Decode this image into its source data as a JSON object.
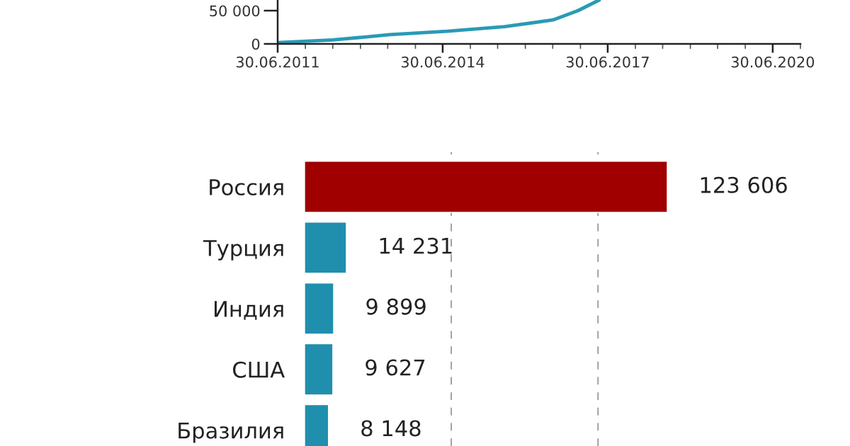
{
  "chart_data": [
    {
      "type": "line",
      "x": [
        "2011-06-30",
        "2012-06-30",
        "2013-01-15",
        "2013-07-15",
        "2014-07-30",
        "2015-08-15",
        "2016-07-01",
        "2016-12-15",
        "2017-05-05"
      ],
      "series": [
        {
          "color": "#2a9ab5",
          "values": [
            2000,
            6000,
            10000,
            14000,
            19000,
            26000,
            36000,
            50000,
            66000
          ]
        }
      ],
      "xlim": [
        "2011-06-30",
        "2020-12-31"
      ],
      "xticks": [
        {
          "value": "2011-06-30",
          "label": "30.06.2011"
        },
        {
          "value": "2014-06-30",
          "label": "30.06.2014"
        },
        {
          "value": "2017-06-30",
          "label": "30.06.2017"
        },
        {
          "value": "2020-06-30",
          "label": "30.06.2020"
        },
        {
          "value": "2020-12-31",
          "label": null
        },
        {
          "value": "2011-12-31",
          "label": null
        },
        {
          "value": "2012-06-30",
          "label": null
        },
        {
          "value": "2012-12-31",
          "label": null
        },
        {
          "value": "2013-06-30",
          "label": null
        },
        {
          "value": "2013-12-31",
          "label": null
        },
        {
          "value": "2014-12-31",
          "label": null
        },
        {
          "value": "2015-06-30",
          "label": null
        },
        {
          "value": "2015-12-31",
          "label": null
        },
        {
          "value": "2016-06-30",
          "label": null
        },
        {
          "value": "2016-12-31",
          "label": null
        },
        {
          "value": "2017-12-31",
          "label": null
        },
        {
          "value": "2018-06-30",
          "label": null
        },
        {
          "value": "2018-12-31",
          "label": null
        },
        {
          "value": "2019-06-30",
          "label": null
        },
        {
          "value": "2019-12-31",
          "label": null
        }
      ],
      "ylim": [
        0,
        66000
      ],
      "yticks": [
        0,
        {
          "value": 50000,
          "label": "50 000"
        }
      ]
    },
    {
      "type": "bar",
      "orientation": "horizontal",
      "categories": [
        "Россия",
        "Турция",
        "Индия",
        "США",
        "Бразилия"
      ],
      "values": [
        123606,
        14231,
        9899,
        9627,
        8148
      ],
      "colors": [
        "#a00000",
        "#1f8fad",
        "#1f8fad",
        "#1f8fad",
        "#1f8fad"
      ],
      "value_labels": [
        "123 606",
        "14 231",
        "9 899",
        "9 627",
        "8 148"
      ],
      "ref_lines": [
        {
          "axis": "x",
          "value": 50000,
          "color": "#999999",
          "line_style": "dashed"
        },
        {
          "axis": "x",
          "value": 100000,
          "color": "#999999",
          "line_style": "dashed"
        }
      ],
      "tick_labels": "y"
    }
  ]
}
